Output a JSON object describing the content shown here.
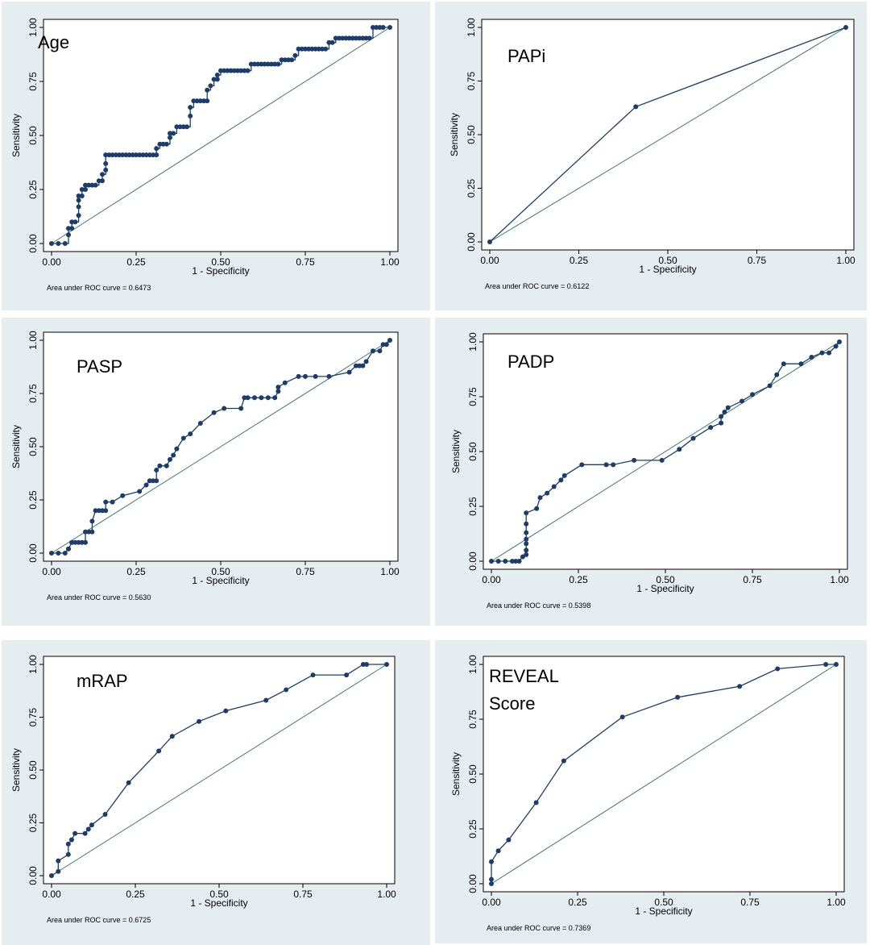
{
  "colors": {
    "panel_bg": "#e6edf1",
    "curve": "#1c3d6b",
    "reference": "#3f7a68"
  },
  "chart_data": [
    {
      "type": "line",
      "title": "Age",
      "title_lines": [
        "Age"
      ],
      "xlabel": "1 - Specificity",
      "ylabel": "Sensitivity",
      "xlim": [
        0,
        1
      ],
      "ylim": [
        0,
        1
      ],
      "x_ticks": [
        "0.00",
        "0.25",
        "0.50",
        "0.75",
        "1.00"
      ],
      "y_ticks": [
        "0.00",
        "0.25",
        "0.50",
        "0.75",
        "1.00"
      ],
      "auc_label": "Area under ROC curve = 0.6473",
      "auc": 0.6473,
      "reference_line": [
        [
          0,
          0
        ],
        [
          1,
          1
        ]
      ],
      "series": [
        {
          "name": "ROC",
          "step": true,
          "x": [
            0,
            0.02,
            0.04,
            0.05,
            0.05,
            0.06,
            0.06,
            0.07,
            0.08,
            0.08,
            0.08,
            0.08,
            0.09,
            0.09,
            0.1,
            0.1,
            0.11,
            0.12,
            0.13,
            0.14,
            0.15,
            0.15,
            0.16,
            0.16,
            0.16,
            0.17,
            0.18,
            0.19,
            0.2,
            0.21,
            0.22,
            0.23,
            0.24,
            0.25,
            0.26,
            0.27,
            0.28,
            0.29,
            0.3,
            0.31,
            0.31,
            0.32,
            0.33,
            0.34,
            0.35,
            0.35,
            0.36,
            0.37,
            0.38,
            0.39,
            0.4,
            0.41,
            0.41,
            0.42,
            0.43,
            0.44,
            0.45,
            0.46,
            0.46,
            0.47,
            0.48,
            0.49,
            0.49,
            0.5,
            0.51,
            0.52,
            0.53,
            0.54,
            0.55,
            0.56,
            0.57,
            0.58,
            0.59,
            0.6,
            0.61,
            0.62,
            0.63,
            0.64,
            0.65,
            0.66,
            0.67,
            0.68,
            0.69,
            0.7,
            0.71,
            0.72,
            0.73,
            0.74,
            0.75,
            0.76,
            0.77,
            0.78,
            0.79,
            0.8,
            0.81,
            0.82,
            0.83,
            0.84,
            0.85,
            0.86,
            0.87,
            0.88,
            0.89,
            0.9,
            0.91,
            0.92,
            0.93,
            0.94,
            0.95,
            0.96,
            0.97,
            0.98,
            1
          ],
          "y": [
            0,
            0,
            0,
            0.04,
            0.07,
            0.07,
            0.1,
            0.1,
            0.13,
            0.17,
            0.2,
            0.22,
            0.22,
            0.25,
            0.25,
            0.27,
            0.27,
            0.27,
            0.27,
            0.29,
            0.29,
            0.32,
            0.34,
            0.37,
            0.41,
            0.41,
            0.41,
            0.41,
            0.41,
            0.41,
            0.41,
            0.41,
            0.41,
            0.41,
            0.41,
            0.41,
            0.41,
            0.41,
            0.41,
            0.41,
            0.44,
            0.46,
            0.46,
            0.46,
            0.49,
            0.51,
            0.51,
            0.54,
            0.54,
            0.54,
            0.54,
            0.59,
            0.63,
            0.66,
            0.66,
            0.66,
            0.66,
            0.66,
            0.71,
            0.73,
            0.76,
            0.76,
            0.78,
            0.8,
            0.8,
            0.8,
            0.8,
            0.8,
            0.8,
            0.8,
            0.8,
            0.8,
            0.83,
            0.83,
            0.83,
            0.83,
            0.83,
            0.83,
            0.83,
            0.83,
            0.83,
            0.85,
            0.85,
            0.85,
            0.85,
            0.87,
            0.9,
            0.9,
            0.9,
            0.9,
            0.9,
            0.9,
            0.9,
            0.9,
            0.9,
            0.93,
            0.93,
            0.95,
            0.95,
            0.95,
            0.95,
            0.95,
            0.95,
            0.95,
            0.95,
            0.95,
            0.95,
            0.95,
            1,
            1,
            1,
            1,
            1
          ]
        }
      ]
    },
    {
      "type": "line",
      "title": "PAPi",
      "title_lines": [
        "PAPi"
      ],
      "xlabel": "1 - Specificity",
      "ylabel": "Sensitivity",
      "xlim": [
        0,
        1
      ],
      "ylim": [
        0,
        1
      ],
      "x_ticks": [
        "0.00",
        "0.25",
        "0.50",
        "0.75",
        "1.00"
      ],
      "y_ticks": [
        "0.00",
        "0.25",
        "0.50",
        "0.75",
        "1.00"
      ],
      "auc_label": "Area under ROC curve = 0.6122",
      "auc": 0.6122,
      "reference_line": [
        [
          0,
          0
        ],
        [
          1,
          1
        ]
      ],
      "series": [
        {
          "name": "ROC",
          "step": false,
          "x": [
            0,
            0.41,
            1
          ],
          "y": [
            0,
            0.63,
            1
          ]
        }
      ]
    },
    {
      "type": "line",
      "title": "PASP",
      "title_lines": [
        "PASP"
      ],
      "xlabel": "1 - Specificity",
      "ylabel": "Sensitivity",
      "xlim": [
        0,
        1
      ],
      "ylim": [
        0,
        1
      ],
      "x_ticks": [
        "0.00",
        "0.25",
        "0.50",
        "0.75",
        "1.00"
      ],
      "y_ticks": [
        "0.00",
        "0.25",
        "0.50",
        "0.75",
        "1.00"
      ],
      "auc_label": "Area under ROC curve = 0.5630",
      "auc": 0.563,
      "reference_line": [
        [
          0,
          0
        ],
        [
          1,
          1
        ]
      ],
      "series": [
        {
          "name": "ROC",
          "step": false,
          "x": [
            0,
            0.02,
            0.04,
            0.05,
            0.05,
            0.06,
            0.06,
            0.07,
            0.08,
            0.09,
            0.1,
            0.1,
            0.11,
            0.12,
            0.12,
            0.13,
            0.14,
            0.15,
            0.16,
            0.16,
            0.18,
            0.21,
            0.26,
            0.28,
            0.29,
            0.3,
            0.31,
            0.31,
            0.32,
            0.34,
            0.35,
            0.36,
            0.37,
            0.39,
            0.41,
            0.44,
            0.48,
            0.51,
            0.56,
            0.57,
            0.58,
            0.6,
            0.62,
            0.64,
            0.66,
            0.67,
            0.67,
            0.69,
            0.73,
            0.75,
            0.78,
            0.82,
            0.88,
            0.9,
            0.91,
            0.92,
            0.93,
            0.95,
            0.97,
            0.98,
            0.99,
            1
          ],
          "y": [
            0,
            0,
            0,
            0.02,
            0.02,
            0.05,
            0.05,
            0.05,
            0.05,
            0.05,
            0.05,
            0.1,
            0.1,
            0.1,
            0.15,
            0.2,
            0.2,
            0.2,
            0.2,
            0.24,
            0.24,
            0.27,
            0.29,
            0.32,
            0.34,
            0.34,
            0.34,
            0.39,
            0.41,
            0.41,
            0.44,
            0.46,
            0.49,
            0.54,
            0.56,
            0.61,
            0.66,
            0.68,
            0.68,
            0.73,
            0.73,
            0.73,
            0.73,
            0.73,
            0.73,
            0.76,
            0.78,
            0.8,
            0.83,
            0.83,
            0.83,
            0.83,
            0.85,
            0.88,
            0.88,
            0.88,
            0.9,
            0.95,
            0.95,
            0.98,
            0.98,
            1
          ]
        }
      ]
    },
    {
      "type": "line",
      "title": "PADP",
      "title_lines": [
        "PADP"
      ],
      "xlabel": "1 - Specificity",
      "ylabel": "Sensitivity",
      "xlim": [
        0,
        1
      ],
      "ylim": [
        0,
        1
      ],
      "x_ticks": [
        "0.00",
        "0.25",
        "0.50",
        "0.75",
        "1.00"
      ],
      "y_ticks": [
        "0.00",
        "0.25",
        "0.50",
        "0.75",
        "1.00"
      ],
      "auc_label": "Area under ROC curve = 0.5398",
      "auc": 0.5398,
      "reference_line": [
        [
          0,
          0
        ],
        [
          1,
          1
        ]
      ],
      "series": [
        {
          "name": "ROC",
          "step": false,
          "x": [
            0,
            0.02,
            0.04,
            0.06,
            0.07,
            0.08,
            0.09,
            0.1,
            0.1,
            0.1,
            0.1,
            0.1,
            0.1,
            0.1,
            0.13,
            0.14,
            0.16,
            0.18,
            0.2,
            0.21,
            0.26,
            0.33,
            0.35,
            0.41,
            0.49,
            0.54,
            0.58,
            0.63,
            0.66,
            0.66,
            0.67,
            0.68,
            0.72,
            0.75,
            0.8,
            0.82,
            0.84,
            0.89,
            0.92,
            0.95,
            0.97,
            0.99,
            1
          ],
          "y": [
            0,
            0,
            0,
            0,
            0,
            0,
            0.02,
            0.03,
            0.05,
            0.08,
            0.1,
            0.13,
            0.17,
            0.22,
            0.24,
            0.29,
            0.31,
            0.34,
            0.37,
            0.39,
            0.44,
            0.44,
            0.44,
            0.46,
            0.46,
            0.51,
            0.56,
            0.61,
            0.63,
            0.66,
            0.68,
            0.7,
            0.73,
            0.76,
            0.8,
            0.85,
            0.9,
            0.9,
            0.93,
            0.95,
            0.95,
            0.98,
            1
          ]
        }
      ]
    },
    {
      "type": "line",
      "title": "mRAP",
      "title_lines": [
        "mRAP"
      ],
      "xlabel": "1 - Specificity",
      "ylabel": "Sensitivity",
      "xlim": [
        0,
        1
      ],
      "ylim": [
        0,
        1
      ],
      "x_ticks": [
        "0.00",
        "0.25",
        "0.50",
        "0.75",
        "1.00"
      ],
      "y_ticks": [
        "0.00",
        "0.25",
        "0.50",
        "0.75",
        "1.00"
      ],
      "auc_label": "Area under ROC curve = 0.6725",
      "auc": 0.6725,
      "reference_line": [
        [
          0,
          0
        ],
        [
          1,
          1
        ]
      ],
      "series": [
        {
          "name": "ROC",
          "step": false,
          "x": [
            0,
            0.02,
            0.02,
            0.05,
            0.05,
            0.06,
            0.07,
            0.1,
            0.11,
            0.12,
            0.16,
            0.23,
            0.32,
            0.36,
            0.44,
            0.52,
            0.64,
            0.7,
            0.78,
            0.88,
            0.93,
            0.94,
            1
          ],
          "y": [
            0,
            0.02,
            0.07,
            0.1,
            0.15,
            0.17,
            0.2,
            0.2,
            0.22,
            0.24,
            0.29,
            0.44,
            0.59,
            0.66,
            0.73,
            0.78,
            0.83,
            0.88,
            0.95,
            0.95,
            1,
            1,
            1
          ]
        }
      ]
    },
    {
      "type": "line",
      "title": "REVEAL Score",
      "title_lines": [
        "REVEAL",
        "Score"
      ],
      "xlabel": "1 - Specificity",
      "ylabel": "Sensitivity",
      "xlim": [
        0,
        1
      ],
      "ylim": [
        0,
        1
      ],
      "x_ticks": [
        "0.00",
        "0.25",
        "0.50",
        "0.75",
        "1.00"
      ],
      "y_ticks": [
        "0.00",
        "0.25",
        "0.50",
        "0.75",
        "1.00"
      ],
      "auc_label": "Area under ROC curve = 0.7369",
      "auc": 0.7369,
      "reference_line": [
        [
          0,
          0
        ],
        [
          1,
          1
        ]
      ],
      "series": [
        {
          "name": "ROC",
          "step": false,
          "x": [
            0,
            0,
            0,
            0.02,
            0.05,
            0.13,
            0.21,
            0.38,
            0.54,
            0.72,
            0.83,
            0.97,
            1
          ],
          "y": [
            0,
            0.02,
            0.1,
            0.15,
            0.2,
            0.37,
            0.56,
            0.76,
            0.85,
            0.9,
            0.98,
            1,
            1
          ]
        }
      ]
    }
  ]
}
